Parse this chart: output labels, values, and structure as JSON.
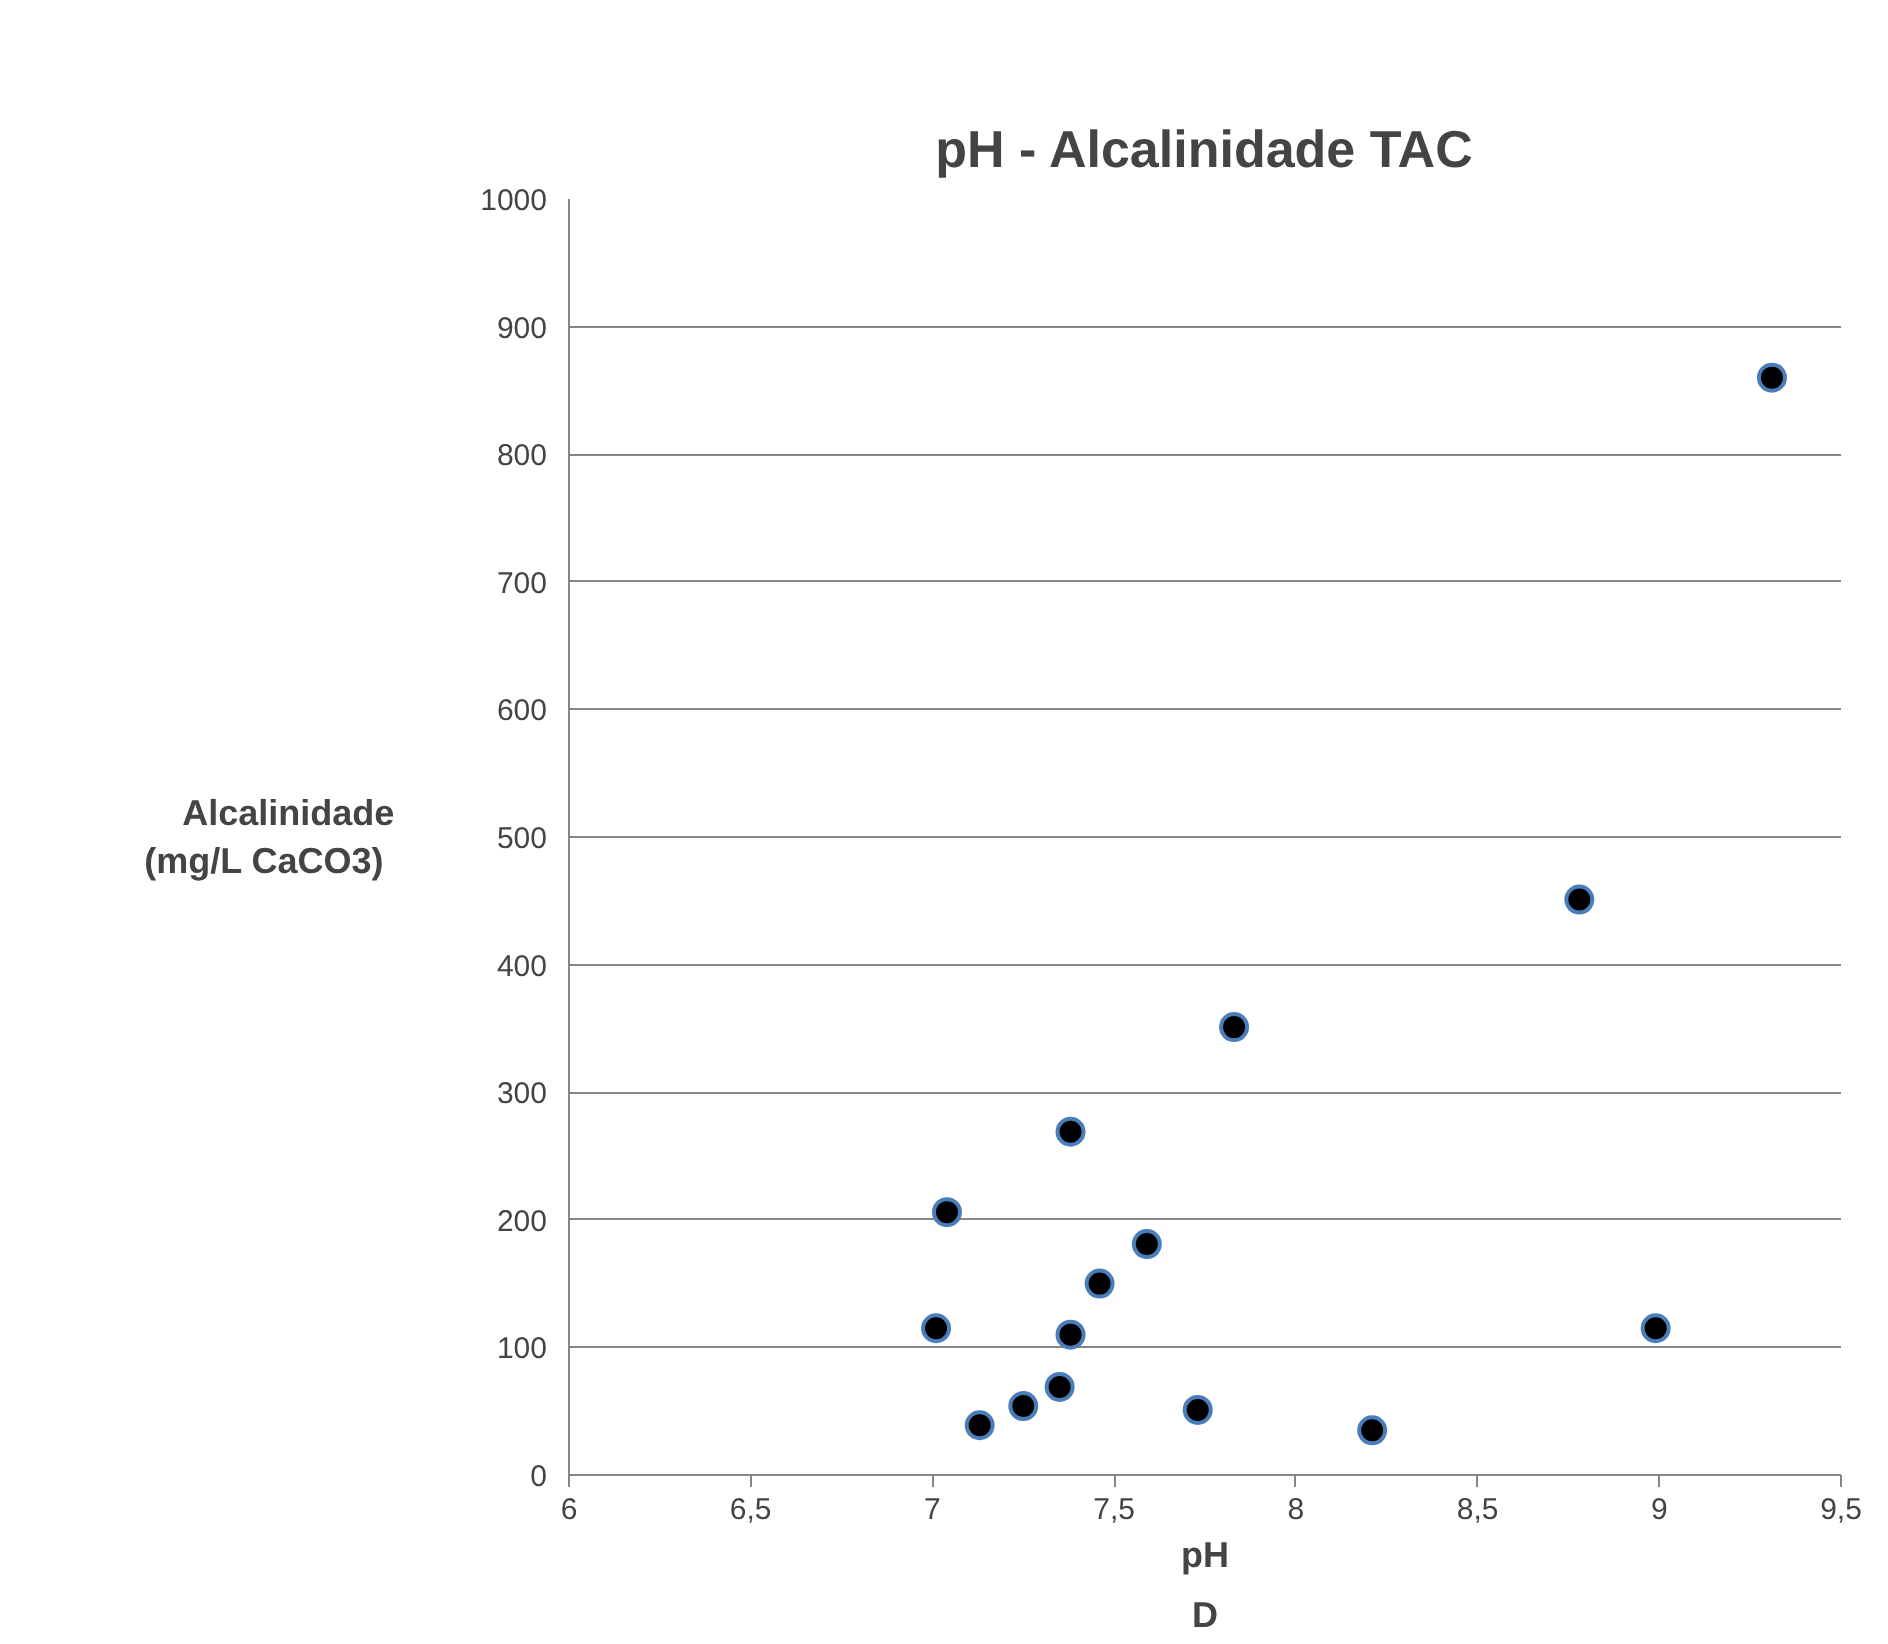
{
  "chart_data": {
    "type": "scatter",
    "title": "pH - Alcalinidade TAC",
    "xlabel": "pH",
    "ylabel": "Alcalinidade\n(mg/L  CaCO3)",
    "annotations": [
      "D"
    ],
    "x": [
      7.01,
      7.04,
      7.13,
      7.25,
      7.35,
      7.38,
      7.38,
      7.46,
      7.59,
      7.73,
      7.83,
      8.21,
      8.78,
      8.99,
      9.31
    ],
    "series": [
      {
        "color": "#000000",
        "values": [
          115,
          206,
          39,
          54,
          69,
          269,
          110,
          150,
          181,
          51,
          351,
          35,
          451,
          115,
          860
        ]
      }
    ],
    "xlim": [
      6,
      9.5
    ],
    "ylim": [
      0,
      1000
    ],
    "xticks": [
      6,
      {
        "value": 6.5,
        "label": "6,5"
      },
      7,
      {
        "value": 7.5,
        "label": "7,5"
      },
      8,
      {
        "value": 8.5,
        "label": "8,5"
      },
      9,
      {
        "value": 9.5,
        "label": "9,5"
      }
    ],
    "yticks": [
      0,
      100,
      200,
      300,
      400,
      500,
      600,
      700,
      800,
      900,
      1000
    ],
    "grid": "y",
    "marker": "circle"
  }
}
